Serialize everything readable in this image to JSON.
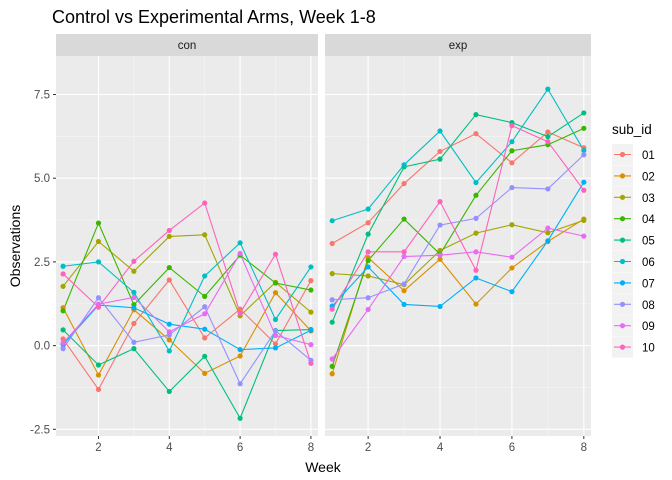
{
  "chart_data": {
    "type": "line",
    "title": "Control vs Experimental Arms, Week 1-8",
    "xlabel": "Week",
    "ylabel": "Observations",
    "xlim": [
      0.8,
      8.2
    ],
    "ylim": [
      -2.7,
      8.65
    ],
    "x_ticks": [
      2,
      4,
      6,
      8
    ],
    "y_ticks": [
      -2.5,
      0.0,
      2.5,
      5.0,
      7.5
    ],
    "y_tick_labels": [
      "-2.5",
      "0.0",
      "2.5",
      "5.0",
      "7.5"
    ],
    "grid": true,
    "legend_position": "right",
    "legend_title": "sub_id",
    "x": [
      1,
      2,
      3,
      4,
      5,
      6,
      7,
      8
    ],
    "series_colors": {
      "01": "#F8766D",
      "02": "#D89000",
      "03": "#A3A500",
      "04": "#39B600",
      "05": "#00BF7D",
      "06": "#00BFC4",
      "07": "#00B0F6",
      "08": "#9590FF",
      "09": "#E76BF3",
      "10": "#FF62BC"
    },
    "panels": [
      {
        "label": "con",
        "series": [
          {
            "name": "01",
            "values": [
              0.2,
              -1.31,
              0.66,
              1.96,
              0.23,
              1.09,
              0.05,
              1.94
            ]
          },
          {
            "name": "02",
            "values": [
              1.13,
              -0.88,
              1.07,
              0.17,
              -0.83,
              -0.31,
              1.58,
              0.44
            ]
          },
          {
            "name": "03",
            "values": [
              1.77,
              3.11,
              2.22,
              3.26,
              3.31,
              0.89,
              1.89,
              1.0
            ]
          },
          {
            "name": "04",
            "values": [
              1.04,
              3.66,
              1.22,
              2.33,
              1.47,
              2.7,
              1.87,
              1.66
            ]
          },
          {
            "name": "05",
            "values": [
              0.47,
              -0.58,
              -0.09,
              -1.37,
              -0.32,
              -2.17,
              0.45,
              0.48
            ]
          },
          {
            "name": "06",
            "values": [
              2.37,
              2.5,
              1.59,
              -0.16,
              2.08,
              3.07,
              0.78,
              2.35
            ]
          },
          {
            "name": "07",
            "values": [
              0.03,
              1.21,
              1.13,
              0.64,
              0.49,
              -0.12,
              -0.07,
              0.46
            ]
          },
          {
            "name": "08",
            "values": [
              -0.09,
              1.43,
              0.1,
              0.32,
              1.16,
              -1.14,
              0.44,
              -0.44
            ]
          },
          {
            "name": "09",
            "values": [
              0.08,
              1.24,
              1.44,
              0.41,
              0.95,
              2.75,
              0.3,
              0.03
            ]
          },
          {
            "name": "10",
            "values": [
              2.14,
              1.15,
              2.52,
              3.44,
              4.26,
              0.97,
              2.73,
              -0.53
            ]
          }
        ]
      },
      {
        "label": "exp",
        "series": [
          {
            "name": "01",
            "values": [
              3.05,
              3.67,
              4.84,
              5.8,
              6.33,
              5.46,
              6.38,
              5.91
            ]
          },
          {
            "name": "02",
            "values": [
              -0.84,
              2.63,
              1.64,
              2.58,
              1.24,
              2.32,
              3.11,
              3.78
            ]
          },
          {
            "name": "03",
            "values": [
              2.15,
              2.08,
              1.82,
              2.84,
              3.36,
              3.61,
              3.37,
              3.74
            ]
          },
          {
            "name": "04",
            "values": [
              -0.62,
              2.54,
              3.78,
              2.73,
              4.49,
              5.82,
              6.0,
              6.49
            ]
          },
          {
            "name": "05",
            "values": [
              0.7,
              3.33,
              5.34,
              5.57,
              6.9,
              6.66,
              6.24,
              6.95
            ]
          },
          {
            "name": "06",
            "values": [
              3.73,
              4.08,
              5.4,
              6.41,
              4.87,
              6.09,
              7.66,
              5.83
            ]
          },
          {
            "name": "07",
            "values": [
              1.18,
              2.35,
              1.23,
              1.17,
              2.02,
              1.61,
              3.13,
              4.88
            ]
          },
          {
            "name": "08",
            "values": [
              1.37,
              1.43,
              1.84,
              3.6,
              3.8,
              4.72,
              4.68,
              5.7
            ]
          },
          {
            "name": "09",
            "values": [
              -0.4,
              1.08,
              2.66,
              2.7,
              2.8,
              2.64,
              3.51,
              3.27
            ]
          },
          {
            "name": "10",
            "values": [
              1.09,
              2.8,
              2.8,
              4.3,
              2.25,
              6.57,
              6.09,
              4.64
            ]
          }
        ]
      }
    ]
  }
}
